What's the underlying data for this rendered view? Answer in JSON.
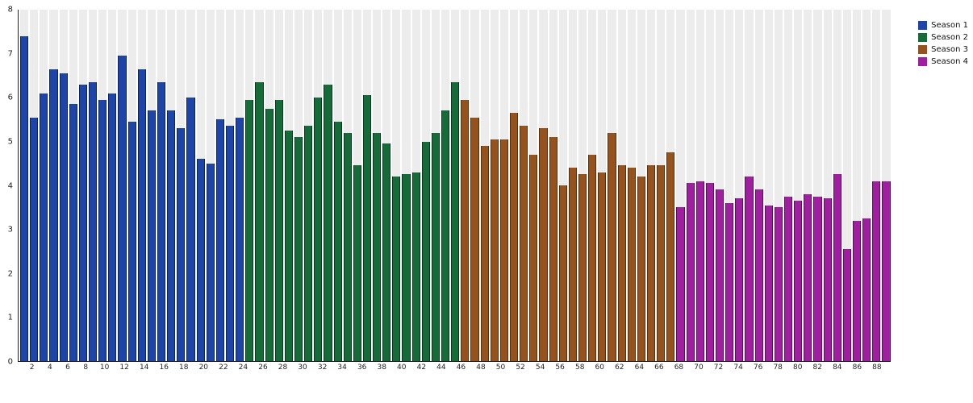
{
  "chart_data": {
    "type": "bar",
    "title": "",
    "xlabel": "",
    "ylabel": "",
    "ylim": [
      0,
      8
    ],
    "yticks": [
      0,
      1,
      2,
      3,
      4,
      5,
      6,
      7,
      8
    ],
    "x_tick_step_note": "x axis labeled at even episode numbers 2 through 88",
    "grid": "vertical light-gray column bands behind bars",
    "legend_position": "top-right outside plot",
    "plot_background": "#ececec",
    "series": [
      {
        "name": "Season 1",
        "color": "#1c44a9",
        "stroke": "#10245c",
        "start_episode": 1,
        "values": [
          7.4,
          5.55,
          6.1,
          6.65,
          6.55,
          5.85,
          6.3,
          6.35,
          5.95,
          6.1,
          6.95,
          5.45,
          6.65,
          5.7,
          6.35,
          5.7,
          5.3,
          6.0,
          4.6,
          4.5,
          5.5,
          5.35,
          5.55
        ]
      },
      {
        "name": "Season 2",
        "color": "#156c39",
        "stroke": "#0a3a1e",
        "start_episode": 24,
        "values": [
          5.95,
          6.35,
          5.75,
          5.95,
          5.25,
          5.1,
          5.35,
          6.0,
          6.3,
          5.45,
          5.2,
          4.45,
          6.05,
          5.2,
          4.95,
          4.2,
          4.25,
          4.3,
          5.0,
          5.2,
          5.7,
          6.35
        ]
      },
      {
        "name": "Season 3",
        "color": "#96521c",
        "stroke": "#57300f",
        "start_episode": 46,
        "values": [
          5.95,
          5.55,
          4.9,
          5.05,
          5.05,
          5.65,
          5.35,
          4.7,
          5.3,
          5.1,
          4.0,
          4.4,
          4.25,
          4.7,
          4.3,
          5.2,
          4.45,
          4.4,
          4.2,
          4.45,
          4.45,
          4.75
        ]
      },
      {
        "name": "Season 4",
        "color": "#a01ea0",
        "stroke": "#5c0f5c",
        "start_episode": 68,
        "values": [
          3.5,
          4.05,
          4.1,
          4.05,
          3.9,
          3.6,
          3.7,
          4.2,
          3.9,
          3.55,
          3.5,
          3.75,
          3.65,
          3.8,
          3.75,
          3.7,
          4.25,
          2.55,
          3.2,
          3.25,
          4.1,
          4.1
        ]
      }
    ]
  }
}
